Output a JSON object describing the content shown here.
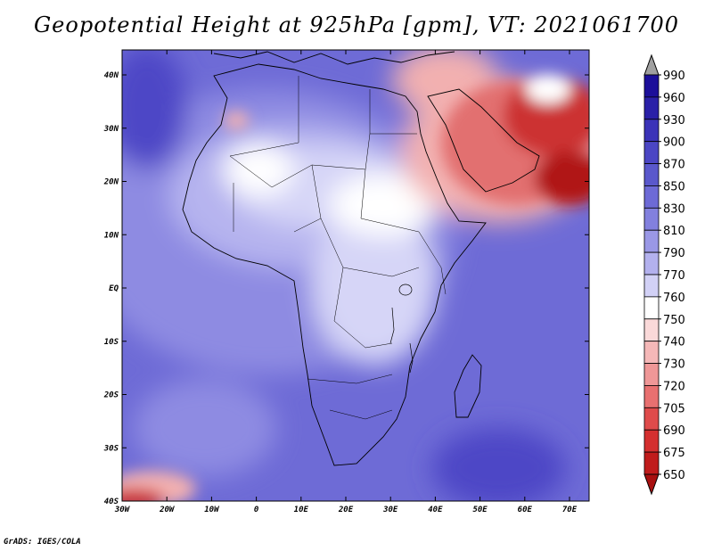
{
  "title": "Geopotential Height at 925hPa [gpm], VT: 2021061700",
  "credit": "GrADS: IGES/COLA",
  "axes": {
    "lat_labels": [
      "40N",
      "30N",
      "20N",
      "10N",
      "EQ",
      "10S",
      "20S",
      "30S",
      "40S"
    ],
    "lon_labels": [
      "30W",
      "20W",
      "10W",
      "0",
      "10E",
      "20E",
      "30E",
      "40E",
      "50E",
      "60E",
      "70E"
    ]
  },
  "colorbar": {
    "levels": [
      "990",
      "960",
      "930",
      "900",
      "870",
      "850",
      "830",
      "810",
      "790",
      "770",
      "760",
      "750",
      "740",
      "730",
      "720",
      "705",
      "690",
      "675",
      "650"
    ],
    "colors": [
      "#a0a0a0",
      "#1c0f9a",
      "#2a20a8",
      "#3b33b8",
      "#4b46c4",
      "#5a58cc",
      "#6d6ad6",
      "#8280de",
      "#9a98e6",
      "#b3b1ee",
      "#d2d1f6",
      "#ffffff",
      "#fad9d9",
      "#f5b8b8",
      "#ef9797",
      "#e87070",
      "#df4b4b",
      "#d42f2f",
      "#c01c1c",
      "#a81010"
    ]
  },
  "field_colors": {
    "ocean_deep": "#4d46c6",
    "ocean": "#6e6bd6",
    "ocean_light": "#8e8be2",
    "land_mid": "#b6b4ef",
    "land_light": "#d6d5f7",
    "white": "#ffffff",
    "heat_light": "#f2b0b0",
    "heat_mid": "#e27070",
    "heat_strong": "#cc3030",
    "heat_max": "#b01515"
  }
}
